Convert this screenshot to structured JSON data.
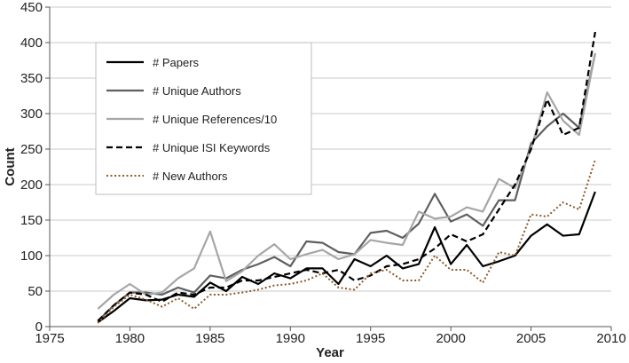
{
  "chart_data": {
    "type": "line",
    "xlabel": "Year",
    "ylabel": "Count",
    "xlim": [
      1975,
      2010
    ],
    "ylim": [
      0,
      450
    ],
    "x_ticks": [
      1975,
      1980,
      1985,
      1990,
      1995,
      2000,
      2005,
      2010
    ],
    "y_ticks": [
      0,
      50,
      100,
      150,
      200,
      250,
      300,
      350,
      400,
      450
    ],
    "grid": "horizontal",
    "legend_position": "top-left",
    "x": [
      1978,
      1979,
      1980,
      1981,
      1982,
      1983,
      1984,
      1985,
      1986,
      1987,
      1988,
      1989,
      1990,
      1991,
      1992,
      1993,
      1994,
      1995,
      1996,
      1997,
      1998,
      1999,
      2000,
      2001,
      2002,
      2003,
      2004,
      2005,
      2006,
      2007,
      2008,
      2009
    ],
    "series": [
      {
        "name": "# Papers",
        "color": "#000000",
        "dash": "solid",
        "values": [
          6,
          22,
          40,
          37,
          38,
          45,
          42,
          62,
          50,
          70,
          60,
          75,
          68,
          82,
          82,
          60,
          95,
          85,
          100,
          82,
          88,
          140,
          88,
          115,
          85,
          92,
          100,
          128,
          144,
          128,
          130,
          190
        ]
      },
      {
        "name": "# Unique Authors",
        "color": "#5f5f5f",
        "dash": "solid",
        "values": [
          8,
          30,
          48,
          48,
          45,
          55,
          48,
          72,
          68,
          80,
          88,
          98,
          85,
          120,
          118,
          105,
          102,
          132,
          135,
          125,
          145,
          187,
          148,
          158,
          142,
          178,
          178,
          258,
          282,
          300,
          280,
          385
        ]
      },
      {
        "name": "# Unique References/10",
        "color": "#a6a6a6",
        "dash": "solid",
        "values": [
          25,
          45,
          60,
          45,
          48,
          68,
          82,
          134,
          64,
          78,
          100,
          116,
          95,
          102,
          108,
          95,
          102,
          122,
          118,
          115,
          162,
          152,
          155,
          168,
          162,
          208,
          195,
          250,
          330,
          290,
          270,
          385
        ]
      },
      {
        "name": "# Unique ISI Keywords",
        "color": "#000000",
        "dash": "dashed",
        "values": [
          8,
          30,
          48,
          45,
          35,
          48,
          45,
          55,
          55,
          65,
          65,
          70,
          75,
          80,
          75,
          80,
          65,
          72,
          85,
          88,
          95,
          110,
          130,
          120,
          130,
          165,
          200,
          250,
          320,
          270,
          280,
          415
        ]
      },
      {
        "name": "# New Authors",
        "color": "#8b5a2b",
        "dash": "dotted",
        "values": [
          5,
          28,
          45,
          38,
          28,
          40,
          25,
          45,
          45,
          48,
          52,
          58,
          60,
          65,
          75,
          55,
          52,
          75,
          80,
          65,
          65,
          100,
          80,
          80,
          62,
          105,
          100,
          158,
          155,
          175,
          165,
          235
        ]
      }
    ]
  }
}
